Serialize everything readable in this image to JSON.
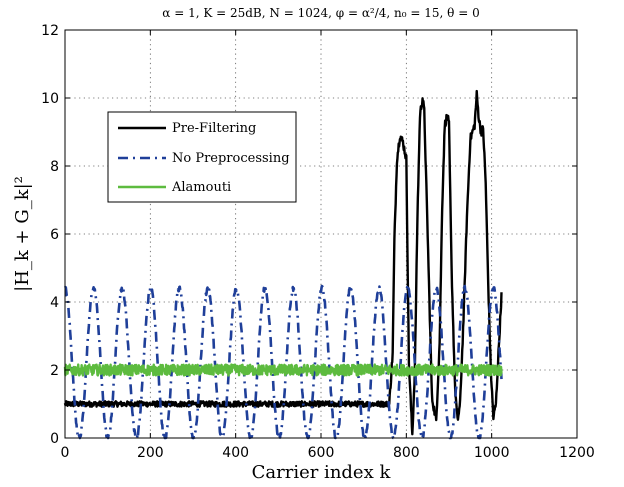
{
  "chart_data": {
    "type": "line",
    "title": "α = 1,  K = 25dB,  N = 1024,  φ = α²/4,  n₀ = 15,  θ = 0",
    "xlabel": "Carrier index k",
    "ylabel": "|H_k + G_k|²",
    "xlim": [
      0,
      1200
    ],
    "ylim": [
      0,
      12
    ],
    "xticks": [
      "0",
      "200",
      "400",
      "600",
      "800",
      "1000",
      "1200"
    ],
    "yticks": [
      "0",
      "2",
      "4",
      "6",
      "8",
      "10",
      "12"
    ],
    "grid": true,
    "legend_position": "upper-left",
    "legend": [
      "Pre-Filtering",
      "No Preprocessing",
      "Alamouti"
    ],
    "series": [
      {
        "name": "Pre-Filtering",
        "color": "#000000",
        "style": "solid",
        "x": [
          0,
          100,
          200,
          300,
          400,
          500,
          600,
          700,
          760,
          768,
          772,
          778,
          785,
          792,
          800,
          806,
          814,
          820,
          826,
          832,
          838,
          842,
          850,
          860,
          870,
          878,
          884,
          890,
          896,
          900,
          906,
          914,
          920,
          926,
          934,
          942,
          950,
          960,
          965,
          970,
          975,
          980,
          986,
          992,
          998,
          1004,
          1010,
          1016,
          1023
        ],
        "values": [
          1.0,
          1.0,
          1.0,
          1.0,
          1.0,
          1.0,
          1.0,
          1.0,
          1.0,
          2.5,
          5.8,
          8.2,
          8.9,
          8.7,
          8.2,
          2.2,
          0.1,
          2.0,
          6.5,
          9.5,
          10.0,
          9.6,
          6.0,
          1.2,
          0.5,
          2.8,
          6.8,
          9.2,
          9.5,
          9.2,
          5.0,
          1.5,
          0.5,
          1.0,
          3.5,
          6.5,
          8.8,
          9.2,
          10.1,
          9.4,
          9.0,
          9.1,
          7.5,
          4.5,
          2.0,
          0.6,
          1.0,
          2.5,
          4.2
        ]
      },
      {
        "name": "No Preprocessing",
        "color": "#1f3f99",
        "style": "dashdot",
        "x": [
          0,
          1023
        ],
        "values": [
          4.4,
          4.2
        ]
      },
      {
        "name": "Alamouti",
        "color": "#5dbb3f",
        "style": "solid",
        "x": [
          0,
          1023
        ],
        "values": [
          2.0,
          2.0
        ]
      }
    ]
  }
}
